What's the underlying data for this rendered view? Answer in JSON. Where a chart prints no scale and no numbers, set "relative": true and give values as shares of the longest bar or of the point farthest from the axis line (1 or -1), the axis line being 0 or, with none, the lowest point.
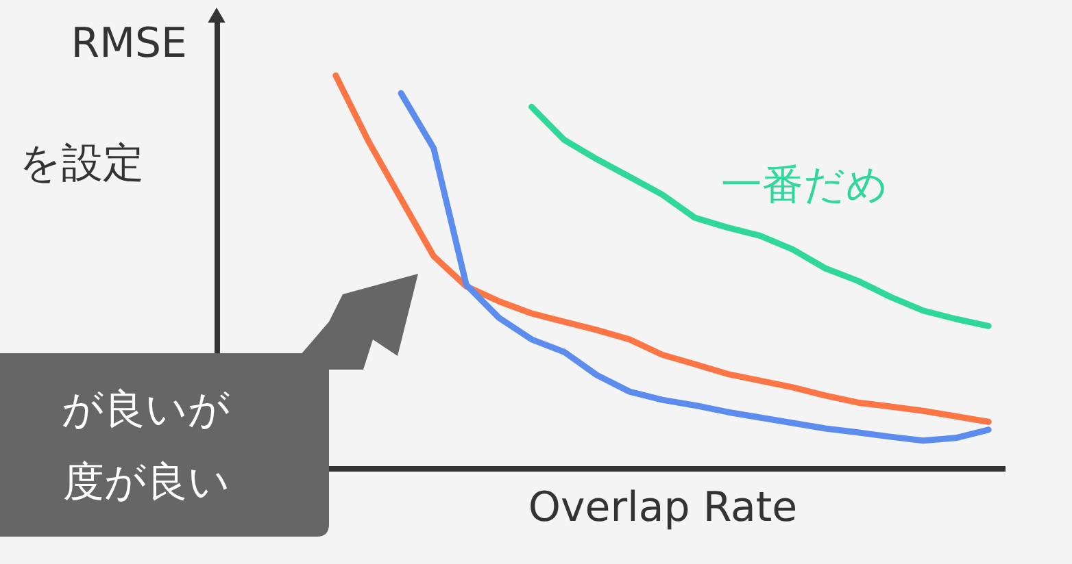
{
  "chart_data": {
    "type": "line",
    "relative": true,
    "xlabel": "Overlap Rate",
    "ylabel": "RMSE",
    "tick_labels": false,
    "grid": false,
    "marker": "none",
    "line_style": "solid",
    "annotations": [
      "を設定",
      "が良いが",
      "度が良い"
    ],
    "categories": [
      null,
      null,
      null,
      null,
      null,
      null,
      null,
      null,
      null,
      null,
      null,
      null,
      null,
      null,
      null,
      null,
      null,
      null,
      null,
      null,
      null
    ],
    "series": [
      {
        "color": "#fc7545",
        "values": [
          1.0,
          0.833,
          0.686,
          0.54,
          0.463,
          0.425,
          0.394,
          0.373,
          0.352,
          0.328,
          0.289,
          0.265,
          0.24,
          0.223,
          0.206,
          0.185,
          0.167,
          0.157,
          0.146,
          0.132,
          0.118
        ]
      },
      {
        "color": "#5b8cee",
        "values": [
          null,
          null,
          0.955,
          0.815,
          0.467,
          0.383,
          0.328,
          0.296,
          0.237,
          0.195,
          0.174,
          0.16,
          0.143,
          0.129,
          0.115,
          0.101,
          0.091,
          0.08,
          0.07,
          0.077,
          0.098
        ]
      },
      {
        "name": "一番だめ",
        "color": "#2fd898",
        "values": [
          null,
          null,
          null,
          null,
          null,
          null,
          0.92,
          0.836,
          0.787,
          0.742,
          0.697,
          0.638,
          0.613,
          0.592,
          0.557,
          0.509,
          0.477,
          0.436,
          0.401,
          0.38,
          0.362
        ]
      }
    ]
  }
}
